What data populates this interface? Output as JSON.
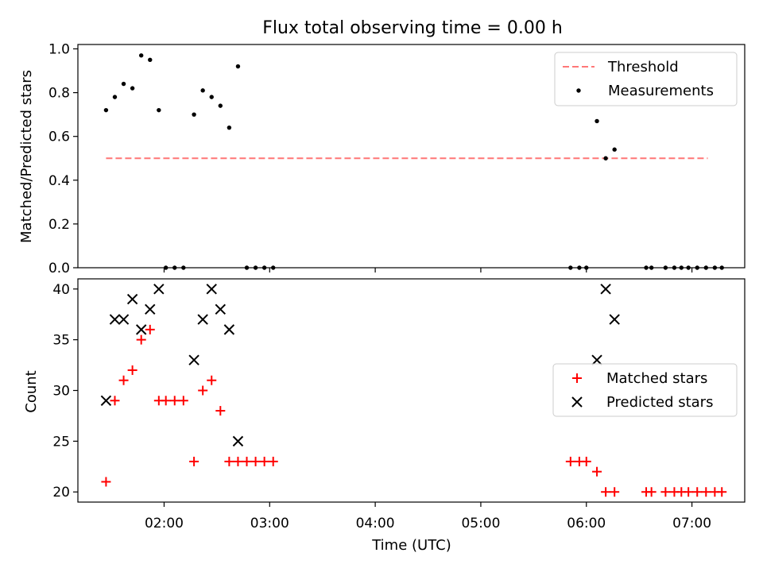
{
  "title": "Flux total observing time = 0.00 h",
  "chart_data": [
    {
      "type": "scatter",
      "ylabel": "Matched/Predicted stars",
      "xlim": [
        "01:11",
        "07:30"
      ],
      "ylim": [
        0,
        1.02
      ],
      "yticks": [
        0.0,
        0.2,
        0.4,
        0.6,
        0.8,
        1.0
      ],
      "ytick_labels": [
        "0.0",
        "0.2",
        "0.4",
        "0.6",
        "0.8",
        "1.0"
      ],
      "xticks": [
        "02:00",
        "03:00",
        "04:00",
        "05:00",
        "06:00",
        "07:00"
      ],
      "legend": {
        "position": "top-right",
        "entries": [
          "Threshold",
          "Measurements"
        ]
      },
      "threshold": {
        "name": "Threshold",
        "value": 0.5,
        "x_range": [
          "01:27",
          "07:09"
        ],
        "color": "#ff7777"
      },
      "measurements": {
        "name": "Measurements",
        "color": "#000000",
        "x": [
          "01:27",
          "01:32",
          "01:37",
          "01:42",
          "01:47",
          "01:52",
          "01:57",
          "02:01",
          "02:06",
          "02:11",
          "02:17",
          "02:22",
          "02:27",
          "02:32",
          "02:37",
          "02:42",
          "02:47",
          "02:52",
          "02:57",
          "03:02",
          "05:51",
          "05:56",
          "06:00",
          "06:06",
          "06:11",
          "06:16",
          "06:58",
          "07:03",
          "07:08"
        ],
        "y": [
          0.72,
          0.78,
          0.84,
          0.82,
          0.97,
          0.95,
          0.72,
          0.0,
          0.0,
          0.0,
          0.7,
          0.81,
          0.78,
          0.74,
          0.64,
          0.92,
          0.0,
          0.0,
          0.0,
          0.0,
          0.0,
          0.0,
          0.0,
          0.67,
          0.5,
          0.54,
          0.0,
          0.0,
          0.0
        ]
      },
      "measurements_extra": {
        "x": [
          "06:34",
          "06:37",
          "06:45",
          "06:50",
          "06:54",
          "07:13",
          "07:17"
        ],
        "y": [
          0.0,
          0.0,
          0.0,
          0.0,
          0.0,
          0.0,
          0.0
        ]
      }
    },
    {
      "type": "scatter",
      "xlabel": "Time (UTC)",
      "ylabel": "Count",
      "xlim": [
        "01:11",
        "07:30"
      ],
      "ylim": [
        19.0,
        41.0
      ],
      "yticks": [
        20,
        25,
        30,
        35,
        40
      ],
      "ytick_labels": [
        "20",
        "25",
        "30",
        "35",
        "40"
      ],
      "xticks": [
        "02:00",
        "03:00",
        "04:00",
        "05:00",
        "06:00",
        "07:00"
      ],
      "legend": {
        "position": "center-right",
        "entries": [
          "Matched stars",
          "Predicted stars"
        ]
      },
      "series": [
        {
          "name": "Matched stars",
          "marker": "+",
          "color": "#ff0000",
          "x": [
            "01:27",
            "01:32",
            "01:37",
            "01:42",
            "01:47",
            "01:52",
            "01:57",
            "02:01",
            "02:06",
            "02:11",
            "02:17",
            "02:22",
            "02:27",
            "02:32",
            "02:37",
            "02:42",
            "02:47",
            "02:52",
            "02:57",
            "03:02",
            "05:51",
            "05:56",
            "06:00",
            "06:06",
            "06:11",
            "06:16",
            "06:34",
            "06:37",
            "06:45",
            "06:50",
            "06:54",
            "06:58",
            "07:03",
            "07:08",
            "07:13",
            "07:17"
          ],
          "y": [
            21,
            29,
            31,
            32,
            35,
            36,
            29,
            29,
            29,
            29,
            23,
            30,
            31,
            28,
            23,
            23,
            23,
            23,
            23,
            23,
            23,
            23,
            23,
            22,
            20,
            20,
            20,
            20,
            20,
            20,
            20,
            20,
            20,
            20,
            20,
            20
          ]
        },
        {
          "name": "Predicted stars",
          "marker": "x",
          "color": "#000000",
          "x": [
            "01:27",
            "01:32",
            "01:37",
            "01:42",
            "01:47",
            "01:52",
            "01:57",
            "02:17",
            "02:22",
            "02:27",
            "02:32",
            "02:37",
            "02:42",
            "06:06",
            "06:11",
            "06:16"
          ],
          "y": [
            29,
            37,
            37,
            39,
            36,
            38,
            40,
            33,
            37,
            40,
            38,
            36,
            25,
            33,
            40,
            37
          ]
        }
      ]
    }
  ]
}
